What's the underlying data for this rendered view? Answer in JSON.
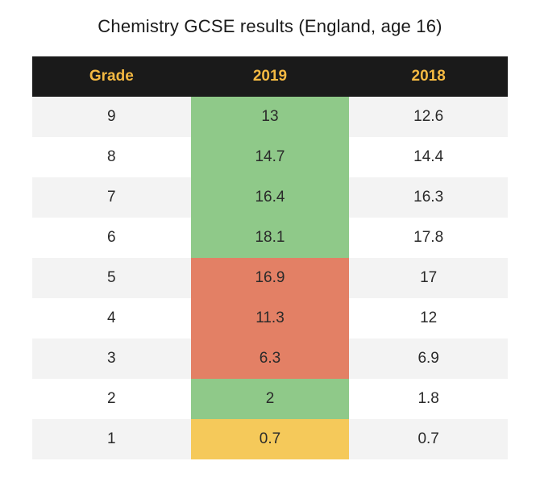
{
  "title": "Chemistry GCSE results (England, age 16)",
  "table": {
    "type": "table",
    "columns": [
      "Grade",
      "2019",
      "2018"
    ],
    "header_bg": "#1a1a1a",
    "header_text_color": "#f4b942",
    "header_fontsize": 19,
    "header_fontweight": 700,
    "body_fontsize": 19,
    "body_text_color": "#2a2a2a",
    "row_odd_bg": "#f3f3f3",
    "row_even_bg": "#ffffff",
    "highlight_colors": {
      "green": "#8fc989",
      "red": "#e38065",
      "yellow": "#f5c95a"
    },
    "rows": [
      {
        "grade": "9",
        "y2019": "13",
        "y2018": "12.6",
        "y2019_highlight": "green"
      },
      {
        "grade": "8",
        "y2019": "14.7",
        "y2018": "14.4",
        "y2019_highlight": "green"
      },
      {
        "grade": "7",
        "y2019": "16.4",
        "y2018": "16.3",
        "y2019_highlight": "green"
      },
      {
        "grade": "6",
        "y2019": "18.1",
        "y2018": "17.8",
        "y2019_highlight": "green"
      },
      {
        "grade": "5",
        "y2019": "16.9",
        "y2018": "17",
        "y2019_highlight": "red"
      },
      {
        "grade": "4",
        "y2019": "11.3",
        "y2018": "12",
        "y2019_highlight": "red"
      },
      {
        "grade": "3",
        "y2019": "6.3",
        "y2018": "6.9",
        "y2019_highlight": "red"
      },
      {
        "grade": "2",
        "y2019": "2",
        "y2018": "1.8",
        "y2019_highlight": "green"
      },
      {
        "grade": "1",
        "y2019": "0.7",
        "y2018": "0.7",
        "y2019_highlight": "yellow"
      }
    ]
  },
  "title_fontsize": 22,
  "title_color": "#1a1a1a",
  "background_color": "#ffffff"
}
